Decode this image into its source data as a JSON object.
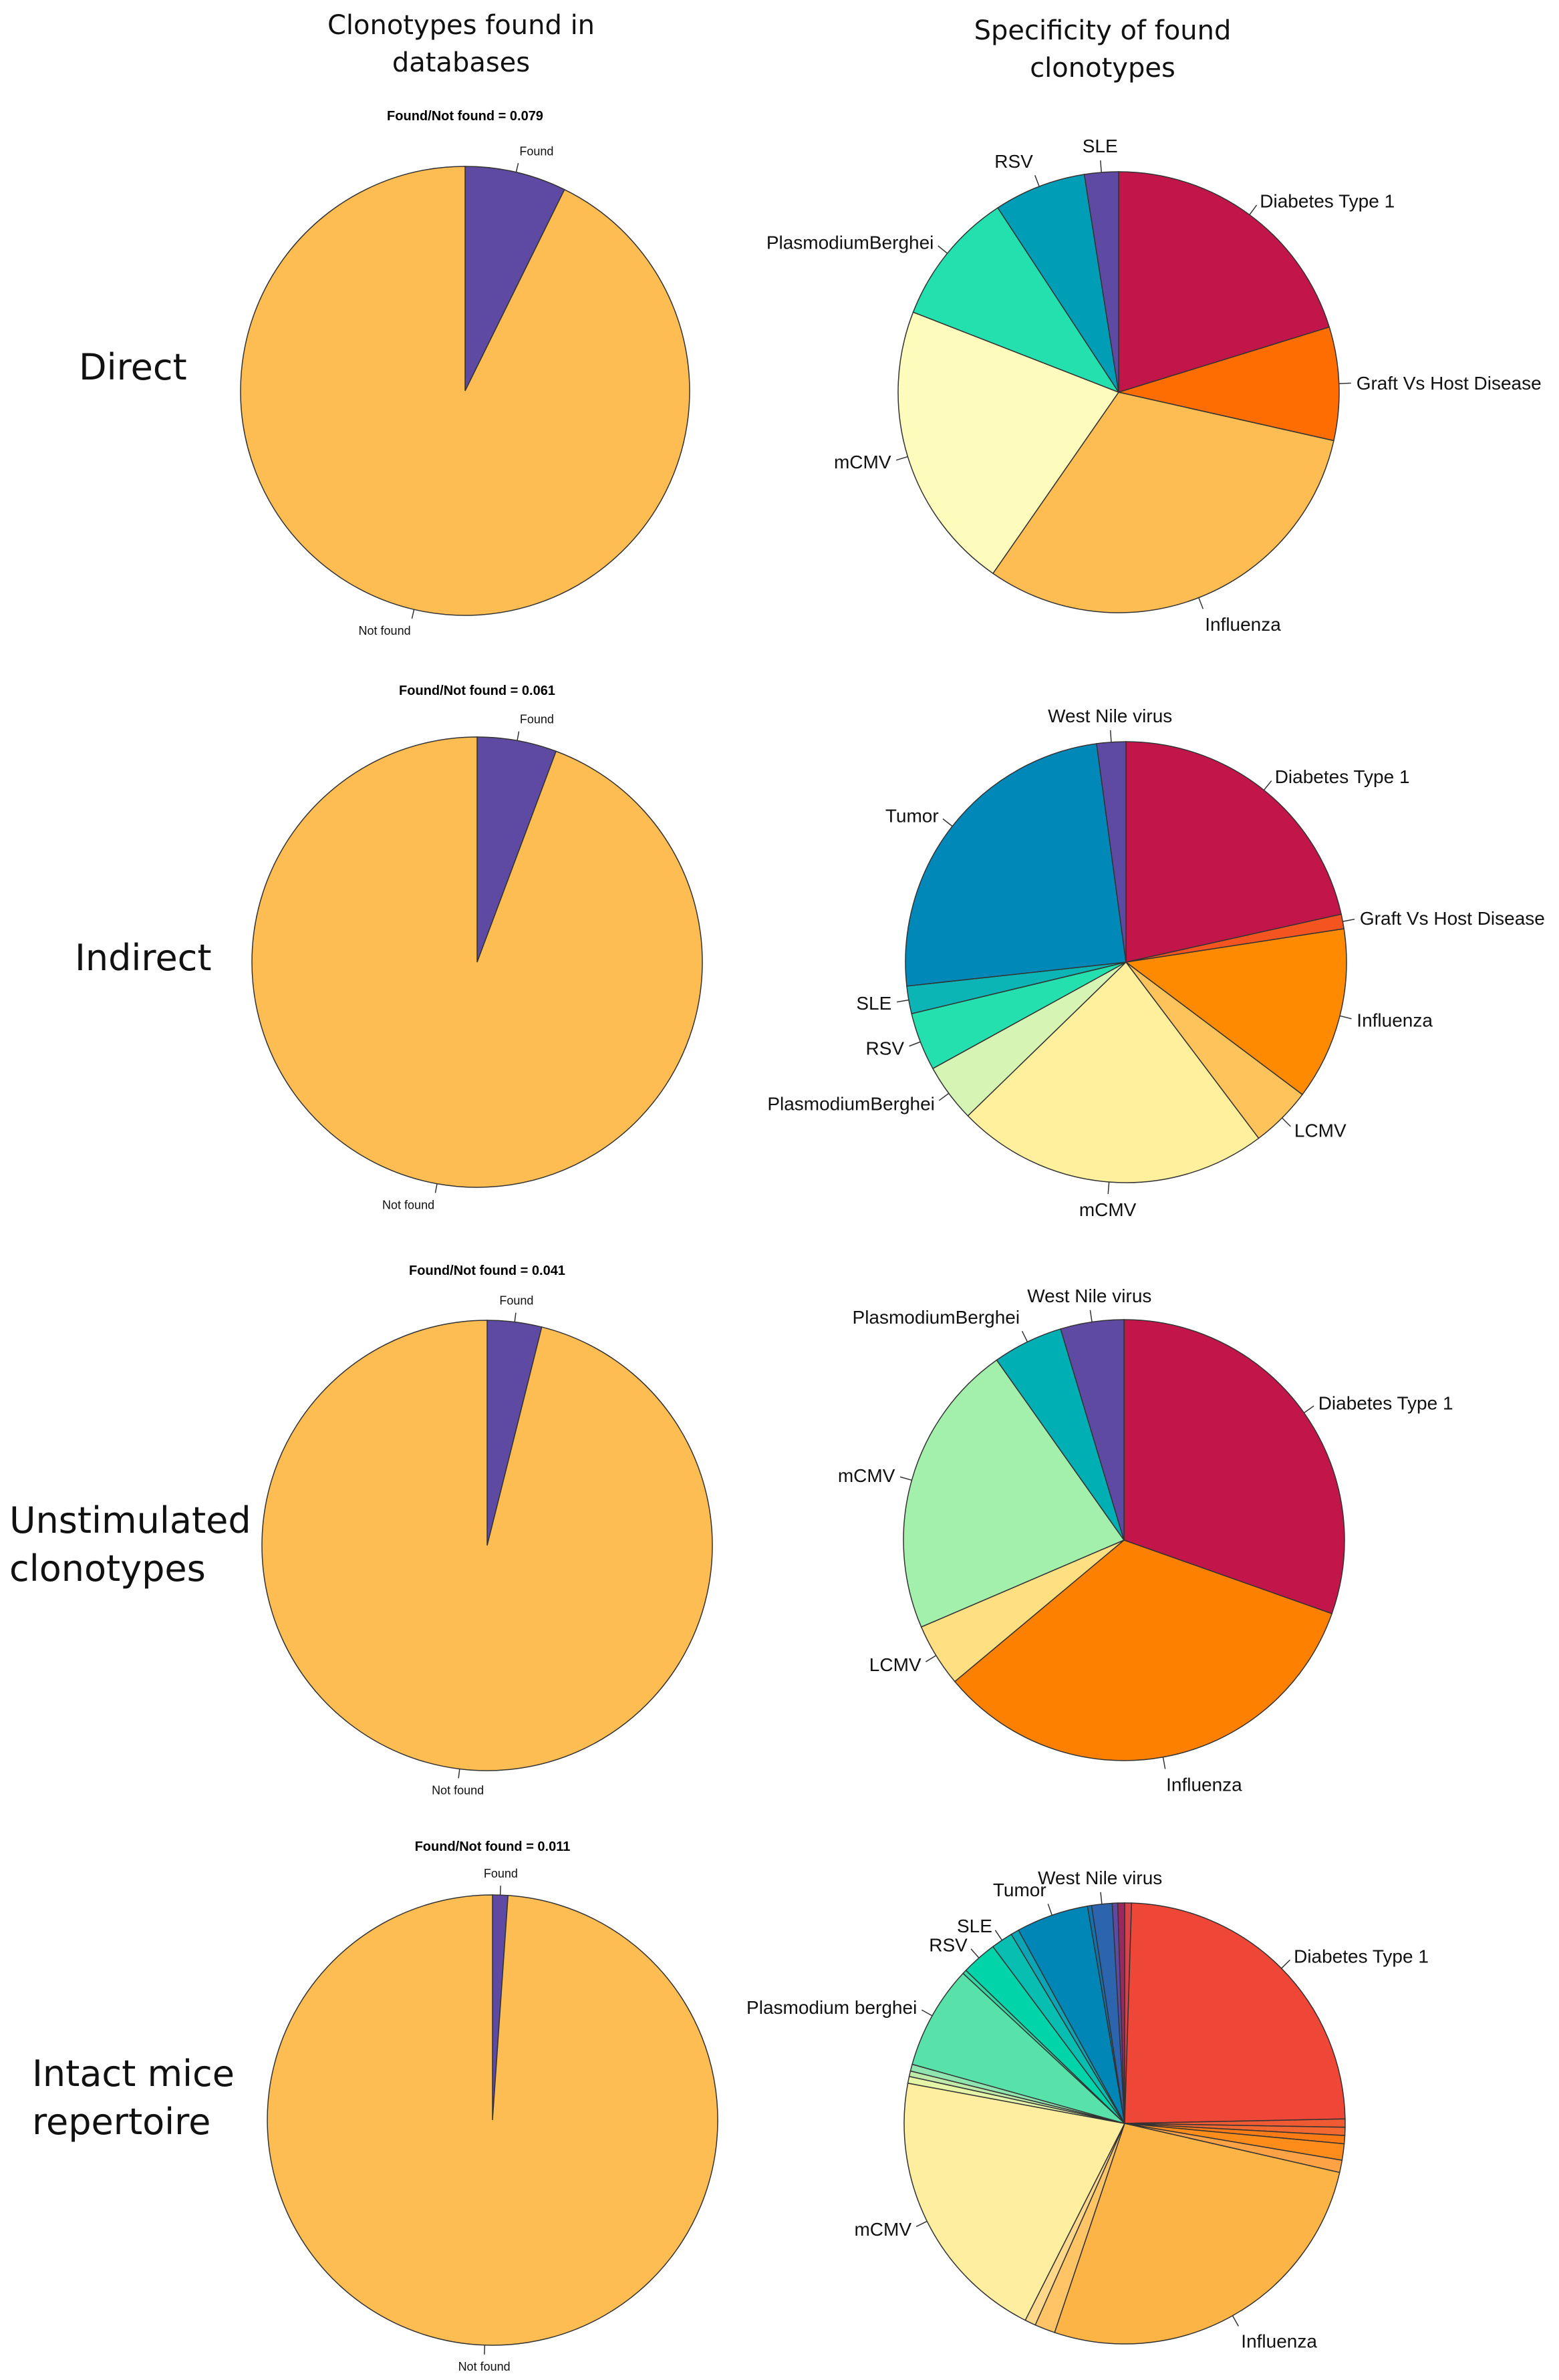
{
  "columns": {
    "left": "Clonotypes found in databases",
    "right": "Specificity of found clonotypes"
  },
  "rows": [
    {
      "label": "Direct"
    },
    {
      "label": "Indirect"
    },
    {
      "label": "Unstimulated clonotypes"
    },
    {
      "label": "Intact mice repertoire"
    }
  ],
  "chart_data": [
    {
      "type": "pie",
      "title": "Found/Not found = 0.079",
      "categories": [
        "Found",
        "Not found"
      ],
      "values": [
        7.3,
        92.7
      ],
      "colors": [
        "#5E4AA3",
        "#FDBD52"
      ]
    },
    {
      "type": "pie",
      "title": "",
      "categories": [
        "Diabetes Type 1",
        "Graft Vs Host Disease",
        "Influenza",
        "mCMV",
        "PlasmodiumBerghei",
        "RSV",
        "SLE"
      ],
      "values": [
        19.5,
        8.0,
        30.0,
        20.5,
        9.5,
        6.5,
        2.4
      ],
      "colors": [
        "#C2154A",
        "#FE6D01",
        "#FDBD52",
        "#FEFCBC",
        "#24DFAE",
        "#009EB6",
        "#5E4AA3"
      ],
      "labeled": [
        true,
        true,
        true,
        true,
        true,
        true,
        true
      ]
    },
    {
      "type": "pie",
      "title": "Found/Not found = 0.061",
      "categories": [
        "Found",
        "Not found"
      ],
      "values": [
        5.7,
        94.3
      ],
      "colors": [
        "#5E4AA3",
        "#FDBD52"
      ]
    },
    {
      "type": "pie",
      "title": "",
      "categories": [
        "Diabetes Type 1",
        "Graft Vs Host Disease",
        "Influenza",
        "LCMV",
        "mCMV",
        "PlasmodiumBerghei",
        "RSV",
        "SLE",
        "Tumor",
        "West Nile virus"
      ],
      "values": [
        20.2,
        1.0,
        11.9,
        4.2,
        21.6,
        4.0,
        4.0,
        1.9,
        23.1,
        2.0
      ],
      "colors": [
        "#C2154A",
        "#F35420",
        "#FD8A01",
        "#FEC35A",
        "#FEF09D",
        "#D6F5B4",
        "#24DFAE",
        "#0BB5B5",
        "#0088B9",
        "#5E4AA3"
      ],
      "labeled": [
        true,
        true,
        true,
        true,
        true,
        true,
        true,
        true,
        true,
        true
      ]
    },
    {
      "type": "pie",
      "title": "Found/Not found = 0.041",
      "categories": [
        "Found",
        "Not found"
      ],
      "values": [
        3.9,
        96.1
      ],
      "colors": [
        "#5E4AA3",
        "#FDBD52"
      ]
    },
    {
      "type": "pie",
      "title": "",
      "categories": [
        "Diabetes Type 1",
        "Influenza",
        "LCMV",
        "mCMV",
        "PlasmodiumBerghei",
        "West Nile virus"
      ],
      "values": [
        29.5,
        32.5,
        4.5,
        21.0,
        5.0,
        4.5
      ],
      "colors": [
        "#C2154A",
        "#FE8001",
        "#FEE083",
        "#A3F0AC",
        "#00AFB4",
        "#5E4AA3"
      ],
      "labeled": [
        true,
        true,
        true,
        true,
        true,
        true
      ]
    },
    {
      "type": "pie",
      "title": "Found/Not found = 0.011",
      "categories": [
        "Found",
        "Not found"
      ],
      "values": [
        1.1,
        98.9
      ],
      "colors": [
        "#5E4AA3",
        "#FDBD52"
      ]
    },
    {
      "type": "pie",
      "title": "",
      "categories": [
        "",
        "Diabetes Type 1",
        "",
        "",
        "",
        "",
        "",
        "Influenza",
        "",
        "",
        "mCMV",
        "",
        "",
        "",
        "Plasmodium berghei",
        "",
        "RSV",
        "SLE",
        "",
        "Tumor",
        "",
        "West Nile virus",
        "",
        ""
      ],
      "values": [
        0.5,
        24.2,
        0.6,
        0.6,
        0.6,
        1.2,
        0.9,
        26.6,
        1.5,
        0.8,
        20.5,
        0.5,
        0.4,
        0.5,
        7.6,
        0.3,
        2.6,
        1.6,
        0.6,
        5.3,
        0.3,
        1.5,
        0.4,
        0.5
      ],
      "colors": [
        "#D8424A",
        "#EE4637",
        "#F05A32",
        "#F26830",
        "#FA7A14",
        "#FE8C1A",
        "#FDA245",
        "#FDB446",
        "#FEC466",
        "#FED88A",
        "#FEEEA0",
        "#E5F4A6",
        "#C0EAA9",
        "#8FE4AF",
        "#58E2AA",
        "#31D9A5",
        "#02D4A9",
        "#07BEB1",
        "#0BA5B5",
        "#0086B6",
        "#0E73B0",
        "#2C64AE",
        "#5E4AA3",
        "#9C2860"
      ],
      "labeled": [
        false,
        true,
        false,
        false,
        false,
        false,
        false,
        true,
        false,
        false,
        true,
        false,
        false,
        false,
        true,
        false,
        true,
        true,
        false,
        true,
        false,
        true,
        false,
        false
      ]
    }
  ]
}
